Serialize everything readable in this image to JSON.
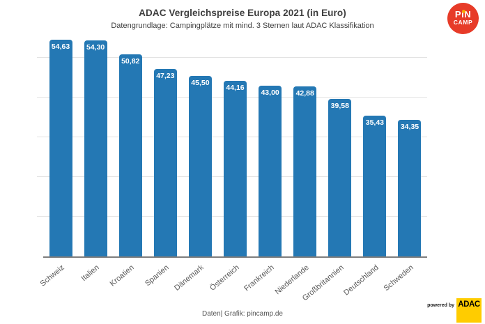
{
  "header": {
    "title": "ADAC Vergleichspreise Europa 2021 (in Euro)",
    "subtitle": "Datengrundlage: Campingplätze mit mind. 3 Sternen laut ADAC Klassifikation"
  },
  "logo": {
    "line1": "PiN",
    "line2": "CAMP",
    "circle_color": "#e73b28",
    "dot_color": "#f7a600"
  },
  "chart_data": {
    "type": "bar",
    "title": "ADAC Vergleichspreise Europa 2021 (in Euro)",
    "subtitle": "Datengrundlage: Campingplätze mit mind. 3 Sternen laut ADAC Klassifikation",
    "categories": [
      "Schweiz",
      "Italien",
      "Kroatien",
      "Spanien",
      "Dänemark",
      "Österreich",
      "Frankreich",
      "Niederlande",
      "Großbritannien",
      "Deutschland",
      "Schweden"
    ],
    "values": [
      54.63,
      54.3,
      50.82,
      47.23,
      45.5,
      44.16,
      43.0,
      42.88,
      39.58,
      35.43,
      34.35
    ],
    "value_labels": [
      "54,63",
      "54,30",
      "50,82",
      "47,23",
      "45,50",
      "44,16",
      "43,00",
      "42,88",
      "39,58",
      "35,43",
      "34,35"
    ],
    "xlabel": "",
    "ylabel": "",
    "ylim": [
      0,
      54.9
    ],
    "gridline_values": [
      10,
      20,
      30,
      40,
      50
    ],
    "grid": true,
    "legend_position": "none",
    "bar_color": "#2478b4",
    "value_label_color": "#ffffff",
    "y_tick_labels_shown": false
  },
  "footer": {
    "credit": "Daten| Grafik: pincamp.de",
    "powered_by": "powered by",
    "adac_label": "ADAC"
  }
}
